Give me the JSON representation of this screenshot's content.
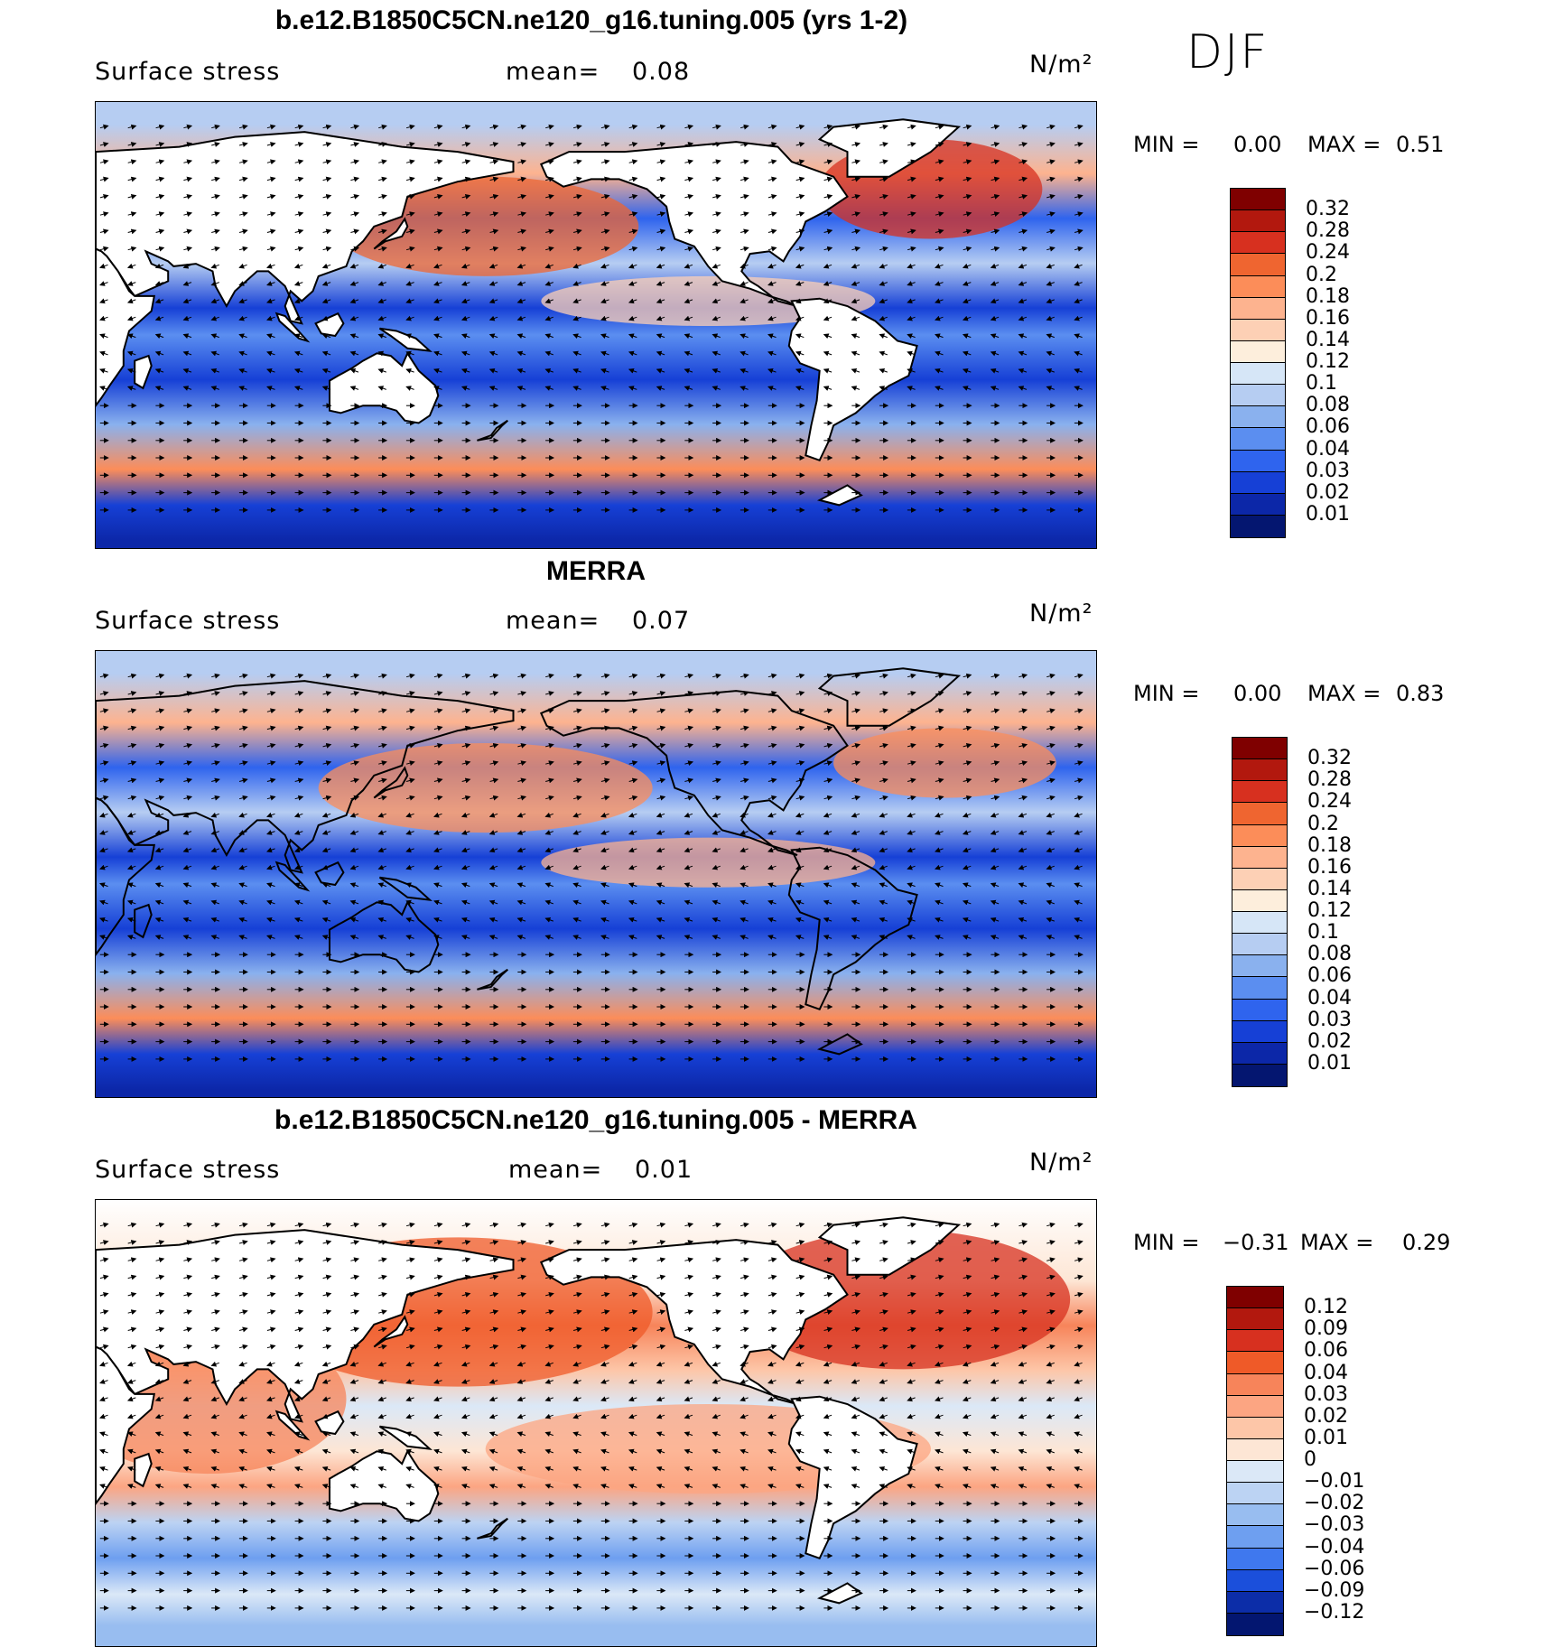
{
  "season": "DJF",
  "panels": [
    {
      "title": "b.e12.B1850C5CN.ne120_g16.tuning.005 (yrs 1-2)",
      "variable": "Surface stress",
      "mean_label": "mean=",
      "mean_value": "0.08",
      "units": "N/m²",
      "min_label": "MIN =",
      "min_value": "0.00",
      "max_label": "MAX =",
      "max_value": "0.51",
      "field": "model",
      "colorbar": {
        "labels": [
          "0.32",
          "0.28",
          "0.24",
          "0.2",
          "0.18",
          "0.16",
          "0.14",
          "0.12",
          "0.1",
          "0.08",
          "0.06",
          "0.04",
          "0.03",
          "0.02",
          "0.01"
        ],
        "colors": [
          "#7f0000",
          "#b2180e",
          "#d7301f",
          "#ef6530",
          "#fc8d59",
          "#fdb38f",
          "#fdd0b5",
          "#fdeedc",
          "#d6e6f7",
          "#b6cdf2",
          "#8ab1ee",
          "#5b8ef0",
          "#2f64ee",
          "#1640d6",
          "#0c27a8",
          "#041670"
        ]
      }
    },
    {
      "title": "MERRA",
      "variable": "Surface stress",
      "mean_label": "mean=",
      "mean_value": "0.07",
      "units": "N/m²",
      "min_label": "MIN =",
      "min_value": "0.00",
      "max_label": "MAX =",
      "max_value": "0.83",
      "field": "obs",
      "colorbar": {
        "labels": [
          "0.32",
          "0.28",
          "0.24",
          "0.2",
          "0.18",
          "0.16",
          "0.14",
          "0.12",
          "0.1",
          "0.08",
          "0.06",
          "0.04",
          "0.03",
          "0.02",
          "0.01"
        ],
        "colors": [
          "#7f0000",
          "#b2180e",
          "#d7301f",
          "#ef6530",
          "#fc8d59",
          "#fdb38f",
          "#fdd0b5",
          "#fdeedc",
          "#d6e6f7",
          "#b6cdf2",
          "#8ab1ee",
          "#5b8ef0",
          "#2f64ee",
          "#1640d6",
          "#0c27a8",
          "#041670"
        ]
      }
    },
    {
      "title": "b.e12.B1850C5CN.ne120_g16.tuning.005 - MERRA",
      "variable": "Surface stress",
      "mean_label": "mean=",
      "mean_value": "0.01",
      "units": "N/m²",
      "min_label": "MIN =",
      "min_value": "−0.31",
      "max_label": "MAX =",
      "max_value": "0.29",
      "field": "diff",
      "colorbar": {
        "labels": [
          "0.12",
          "0.09",
          "0.06",
          "0.04",
          "0.03",
          "0.02",
          "0.01",
          "0",
          "−0.01",
          "−0.02",
          "−0.03",
          "−0.04",
          "−0.06",
          "−0.09",
          "−0.12"
        ],
        "colors": [
          "#7f0000",
          "#b2180e",
          "#d7301f",
          "#ef5a28",
          "#f7845a",
          "#fca582",
          "#fdc6a8",
          "#fde6d5",
          "#dbe8f7",
          "#bcd3f3",
          "#98bdf0",
          "#6e9ff0",
          "#3f78ee",
          "#1b4fdb",
          "#0c2da8",
          "#031670"
        ]
      }
    }
  ]
}
